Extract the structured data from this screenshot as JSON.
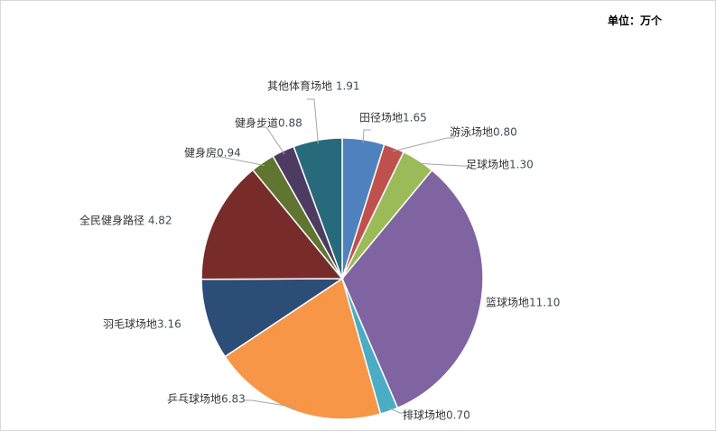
{
  "unit_label": "单位：万个",
  "chart_data": {
    "type": "pie",
    "start_angle": "12 o'clock",
    "direction": "clockwise",
    "legend": "none",
    "slices": [
      {
        "label": "田径场地",
        "value": 1.65,
        "value_text": "1.65",
        "color": "#4f81bd"
      },
      {
        "label": "游泳场地",
        "value": 0.8,
        "value_text": "0.80",
        "color": "#c0504d"
      },
      {
        "label": "足球场地",
        "value": 1.3,
        "value_text": "1.30",
        "color": "#9bbb59"
      },
      {
        "label": "篮球场地",
        "value": 11.1,
        "value_text": "11.10",
        "color": "#8064a2"
      },
      {
        "label": "排球场地",
        "value": 0.7,
        "value_text": "0.70",
        "color": "#4bacc6"
      },
      {
        "label": "乒乓球场地",
        "value": 6.83,
        "value_text": "6.83",
        "color": "#f79646"
      },
      {
        "label": "羽毛球场地",
        "value": 3.16,
        "value_text": "3.16",
        "color": "#2c4d75"
      },
      {
        "label": "全民健身路径",
        "value": 4.82,
        "value_text": " 4.82",
        "color": "#772c2a"
      },
      {
        "label": "健身房",
        "value": 0.94,
        "value_text": "0.94",
        "color": "#5f7530"
      },
      {
        "label": "健身步道",
        "value": 0.88,
        "value_text": "0.88",
        "color": "#4d3b62"
      },
      {
        "label": "其他体育场地",
        "value": 1.91,
        "value_text": " 1.91",
        "color": "#276a7c"
      }
    ]
  }
}
